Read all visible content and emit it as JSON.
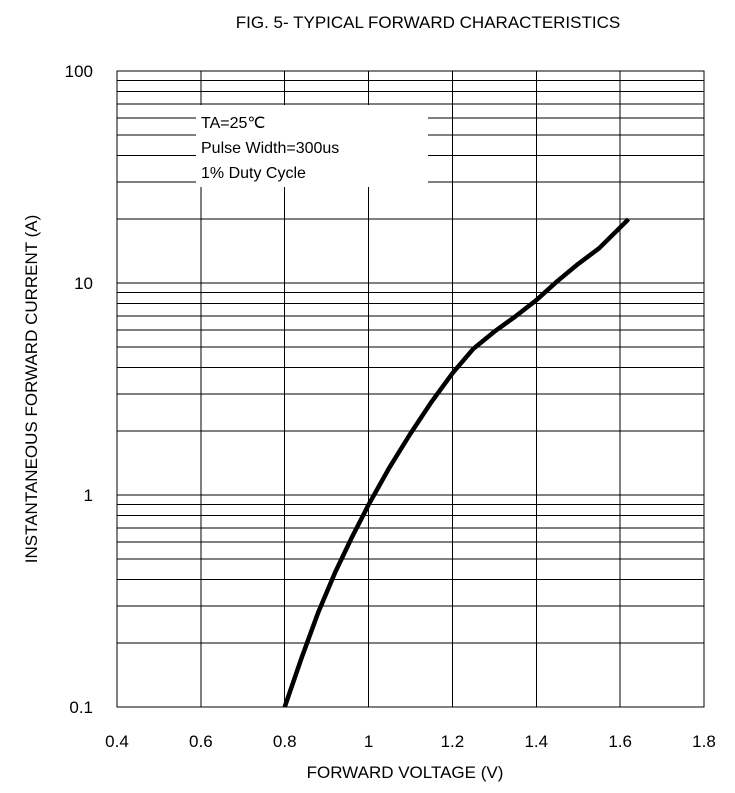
{
  "chart_data": {
    "type": "line",
    "title": "FIG. 5- TYPICAL FORWARD CHARACTERISTICS",
    "xlabel": "FORWARD VOLTAGE (V)",
    "ylabel": "INSTANTANEOUS FORWARD CURRENT (A)",
    "xlim": [
      0.4,
      1.8
    ],
    "ylim": [
      0.1,
      100
    ],
    "yscale": "log",
    "grid": true,
    "x_ticks": [
      "0.4",
      "0.6",
      "0.8",
      "1",
      "1.2",
      "1.4",
      "1.6",
      "1.8"
    ],
    "y_ticks": [
      "0.1",
      "1",
      "10",
      "100"
    ],
    "annotation": [
      "TA=25℃",
      "Pulse Width=300us",
      "1% Duty Cycle"
    ],
    "series": [
      {
        "x": [
          0.8,
          0.84,
          0.88,
          0.92,
          0.96,
          1.0,
          1.05,
          1.1,
          1.15,
          1.2,
          1.25,
          1.3,
          1.35,
          1.4,
          1.45,
          1.5,
          1.55,
          1.62
        ],
        "values": [
          0.1,
          0.17,
          0.28,
          0.43,
          0.63,
          0.9,
          1.35,
          1.95,
          2.75,
          3.75,
          4.9,
          5.9,
          6.95,
          8.3,
          10.2,
          12.3,
          14.6,
          20.0
        ]
      }
    ]
  }
}
